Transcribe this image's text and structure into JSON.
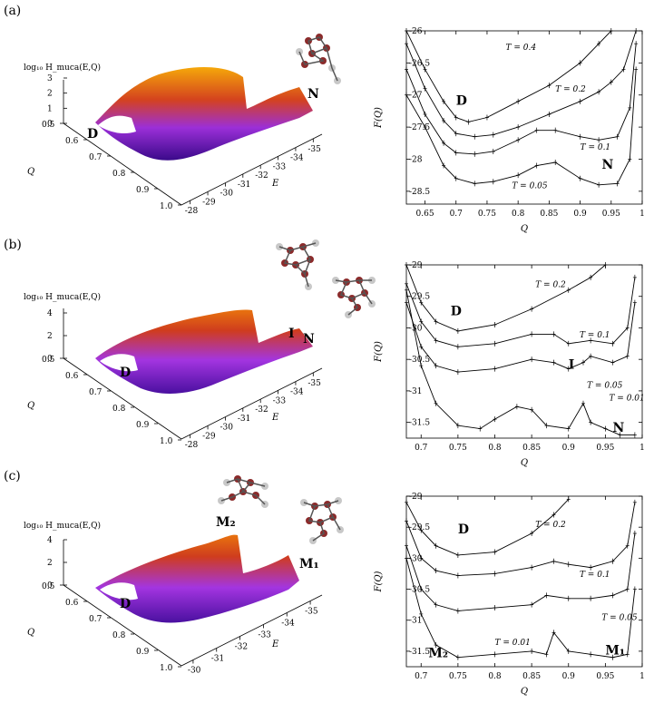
{
  "panels": [
    {
      "label": "(a)",
      "surface": {
        "zlabel": "log₁₀ H_muca(E,Q)",
        "zticks": [
          "3",
          "2",
          "1",
          "0"
        ],
        "qlabel": "Q",
        "qticks": [
          "0.5",
          "0.6",
          "0.7",
          "0.8",
          "0.9",
          "1.0"
        ],
        "elabel": "E",
        "eticks": [
          "-28",
          "-29",
          "-30",
          "-31",
          "-32",
          "-33",
          "-34",
          "-35"
        ],
        "annotations": [
          "D",
          "N"
        ]
      },
      "chart_data": {
        "type": "line",
        "xlabel": "Q",
        "ylabel": "F(Q)",
        "xlim": [
          0.62,
          1.0
        ],
        "ylim": [
          -28.7,
          -26.0
        ],
        "xticks": [
          "0.65",
          "0.7",
          "0.75",
          "0.8",
          "0.85",
          "0.9",
          "0.95",
          "1"
        ],
        "yticks": [
          "-26",
          "-26.5",
          "-27",
          "-27.5",
          "-28",
          "-28.5"
        ],
        "series": [
          {
            "label": "T = 0.4",
            "x": [
              0.62,
              0.65,
              0.68,
              0.7,
              0.72,
              0.75,
              0.8,
              0.85,
              0.9,
              0.93,
              0.95
            ],
            "y": [
              -26.0,
              -26.6,
              -27.1,
              -27.35,
              -27.42,
              -27.35,
              -27.1,
              -26.85,
              -26.5,
              -26.2,
              -26.0
            ]
          },
          {
            "label": "T = 0.2",
            "x": [
              0.62,
              0.65,
              0.68,
              0.7,
              0.73,
              0.76,
              0.8,
              0.85,
              0.9,
              0.93,
              0.95,
              0.97,
              0.99
            ],
            "y": [
              -26.2,
              -26.9,
              -27.4,
              -27.6,
              -27.65,
              -27.62,
              -27.5,
              -27.3,
              -27.1,
              -26.95,
              -26.8,
              -26.6,
              -26.0
            ]
          },
          {
            "label": "T = 0.1",
            "x": [
              0.62,
              0.65,
              0.68,
              0.7,
              0.73,
              0.76,
              0.8,
              0.83,
              0.86,
              0.9,
              0.93,
              0.96,
              0.98,
              0.99
            ],
            "y": [
              -26.6,
              -27.3,
              -27.75,
              -27.9,
              -27.92,
              -27.88,
              -27.7,
              -27.55,
              -27.55,
              -27.65,
              -27.7,
              -27.65,
              -27.2,
              -26.2
            ]
          },
          {
            "label": "T = 0.05",
            "x": [
              0.62,
              0.65,
              0.68,
              0.7,
              0.73,
              0.76,
              0.8,
              0.83,
              0.86,
              0.9,
              0.93,
              0.96,
              0.98,
              0.99
            ],
            "y": [
              -27.0,
              -27.5,
              -28.1,
              -28.3,
              -28.38,
              -28.35,
              -28.25,
              -28.1,
              -28.05,
              -28.3,
              -28.4,
              -28.38,
              -28.0,
              -26.6
            ]
          }
        ],
        "series_labels": [
          "T = 0.4",
          "T = 0.2",
          "T = 0.1",
          "T = 0.05"
        ],
        "annotations": [
          "D",
          "N"
        ]
      }
    },
    {
      "label": "(b)",
      "surface": {
        "zlabel": "log₁₀ H_muca(E,Q)",
        "zticks": [
          "4",
          "2",
          "0"
        ],
        "qlabel": "Q",
        "qticks": [
          "0.5",
          "0.6",
          "0.7",
          "0.8",
          "0.9",
          "1.0"
        ],
        "elabel": "E",
        "eticks": [
          "-28",
          "-29",
          "-30",
          "-31",
          "-32",
          "-33",
          "-34",
          "-35"
        ],
        "annotations": [
          "D",
          "I",
          "N"
        ]
      },
      "chart_data": {
        "type": "line",
        "xlabel": "Q",
        "ylabel": "F(Q)",
        "xlim": [
          0.68,
          1.0
        ],
        "ylim": [
          -31.75,
          -29.0
        ],
        "xticks": [
          "0.7",
          "0.75",
          "0.8",
          "0.85",
          "0.9",
          "0.95",
          "1"
        ],
        "yticks": [
          "-29",
          "-29.5",
          "-30",
          "-30.5",
          "-31",
          "-31.5"
        ],
        "series": [
          {
            "label": "T = 0.2",
            "x": [
              0.68,
              0.7,
              0.72,
              0.75,
              0.8,
              0.85,
              0.9,
              0.93,
              0.95
            ],
            "y": [
              -29.0,
              -29.6,
              -29.9,
              -30.05,
              -29.95,
              -29.7,
              -29.4,
              -29.2,
              -29.0
            ]
          },
          {
            "label": "T = 0.1",
            "x": [
              0.68,
              0.7,
              0.72,
              0.75,
              0.8,
              0.85,
              0.88,
              0.9,
              0.93,
              0.96,
              0.98,
              0.99
            ],
            "y": [
              -29.3,
              -29.9,
              -30.2,
              -30.3,
              -30.25,
              -30.1,
              -30.1,
              -30.25,
              -30.2,
              -30.25,
              -30.0,
              -29.2
            ]
          },
          {
            "label": "T = 0.05",
            "x": [
              0.68,
              0.7,
              0.72,
              0.75,
              0.8,
              0.85,
              0.88,
              0.9,
              0.92,
              0.93,
              0.96,
              0.98,
              0.99
            ],
            "y": [
              -29.6,
              -30.3,
              -30.6,
              -30.7,
              -30.65,
              -30.5,
              -30.55,
              -30.65,
              -30.55,
              -30.45,
              -30.55,
              -30.45,
              -29.6
            ]
          },
          {
            "label": "T = 0.01",
            "x": [
              0.68,
              0.7,
              0.72,
              0.75,
              0.78,
              0.8,
              0.83,
              0.85,
              0.87,
              0.9,
              0.92,
              0.93,
              0.95,
              0.97,
              0.99
            ],
            "y": [
              -29.4,
              -30.6,
              -31.2,
              -31.55,
              -31.6,
              -31.45,
              -31.25,
              -31.3,
              -31.55,
              -31.6,
              -31.2,
              -31.5,
              -31.6,
              -31.7,
              -31.7
            ]
          }
        ],
        "series_labels": [
          "T = 0.2",
          "T = 0.1",
          "T = 0.05",
          "T = 0.01"
        ],
        "annotations": [
          "D",
          "I",
          "N"
        ]
      }
    },
    {
      "label": "(c)",
      "surface": {
        "zlabel": "log₁₀ H_muca(E,Q)",
        "zticks": [
          "4",
          "2",
          "0"
        ],
        "qlabel": "Q",
        "qticks": [
          "0.5",
          "0.6",
          "0.7",
          "0.8",
          "0.9",
          "1.0"
        ],
        "elabel": "E",
        "eticks": [
          "-30",
          "-31",
          "-32",
          "-33",
          "-34",
          "-35"
        ],
        "annotations": [
          "D",
          "M₂",
          "M₁"
        ]
      },
      "chart_data": {
        "type": "line",
        "xlabel": "Q",
        "ylabel": "F(Q)",
        "xlim": [
          0.68,
          1.0
        ],
        "ylim": [
          -31.75,
          -29.0
        ],
        "xticks": [
          "0.7",
          "0.75",
          "0.8",
          "0.85",
          "0.9",
          "0.95",
          "1"
        ],
        "yticks": [
          "-29",
          "-29.5",
          "-30",
          "-30.5",
          "-31",
          "-31.5"
        ],
        "series": [
          {
            "label": "T = 0.2",
            "x": [
              0.68,
              0.7,
              0.72,
              0.75,
              0.8,
              0.85,
              0.88,
              0.9
            ],
            "y": [
              -29.1,
              -29.55,
              -29.8,
              -29.95,
              -29.9,
              -29.6,
              -29.3,
              -29.05
            ]
          },
          {
            "label": "T = 0.1",
            "x": [
              0.68,
              0.7,
              0.72,
              0.75,
              0.8,
              0.85,
              0.88,
              0.9,
              0.93,
              0.96,
              0.98,
              0.99
            ],
            "y": [
              -29.4,
              -30.0,
              -30.2,
              -30.28,
              -30.25,
              -30.15,
              -30.05,
              -30.1,
              -30.15,
              -30.05,
              -29.8,
              -29.1
            ]
          },
          {
            "label": "T = 0.05",
            "x": [
              0.68,
              0.7,
              0.72,
              0.75,
              0.8,
              0.85,
              0.87,
              0.9,
              0.93,
              0.96,
              0.98,
              0.99
            ],
            "y": [
              -29.8,
              -30.5,
              -30.75,
              -30.85,
              -30.8,
              -30.75,
              -30.6,
              -30.65,
              -30.65,
              -30.6,
              -30.5,
              -29.6
            ]
          },
          {
            "label": "T = 0.01",
            "x": [
              0.68,
              0.7,
              0.72,
              0.75,
              0.8,
              0.85,
              0.87,
              0.88,
              0.9,
              0.93,
              0.96,
              0.98,
              0.99
            ],
            "y": [
              -30.0,
              -30.9,
              -31.4,
              -31.6,
              -31.55,
              -31.5,
              -31.55,
              -31.2,
              -31.5,
              -31.55,
              -31.6,
              -31.55,
              -30.5
            ]
          }
        ],
        "series_labels": [
          "T = 0.2",
          "T = 0.1",
          "T = 0.05",
          "T = 0.01"
        ],
        "annotations": [
          "D",
          "M₂",
          "M₁"
        ]
      }
    }
  ]
}
